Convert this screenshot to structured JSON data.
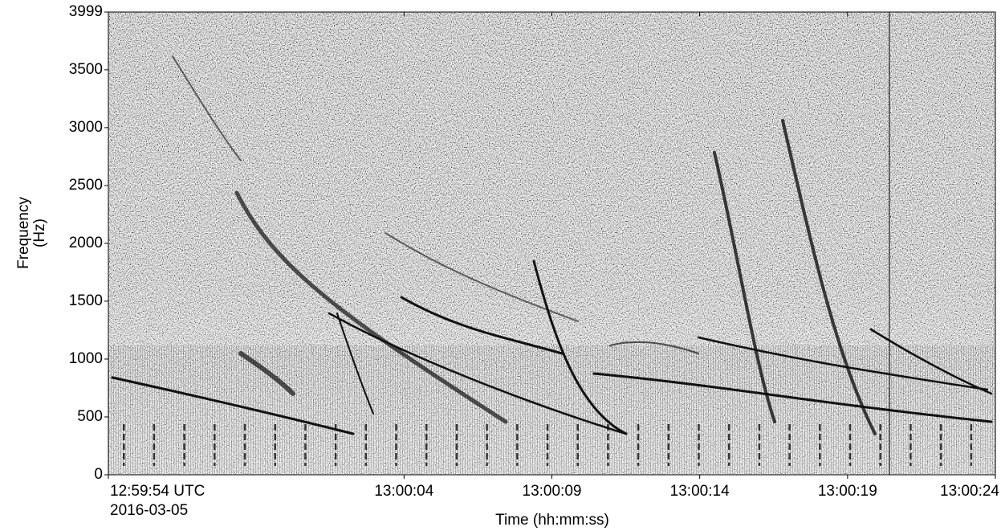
{
  "chart_data": {
    "type": "spectrogram",
    "ylabel": [
      "Frequency",
      "(Hz)"
    ],
    "xlabel": "Time (hh:mm:ss)",
    "date": "2016-03-05",
    "xlim": [
      "12:59:54",
      "13:00:24"
    ],
    "xticks": [
      {
        "value": "12:59:54",
        "label": "12:59:54 UTC"
      },
      "13:00:04",
      "13:00:09",
      "13:00:14",
      "13:00:19",
      "13:00:24"
    ],
    "ylim": [
      0,
      3999
    ],
    "yticks": [
      0,
      500,
      1000,
      1500,
      2000,
      2500,
      3000,
      3500,
      3999
    ],
    "colormap": "gray"
  }
}
